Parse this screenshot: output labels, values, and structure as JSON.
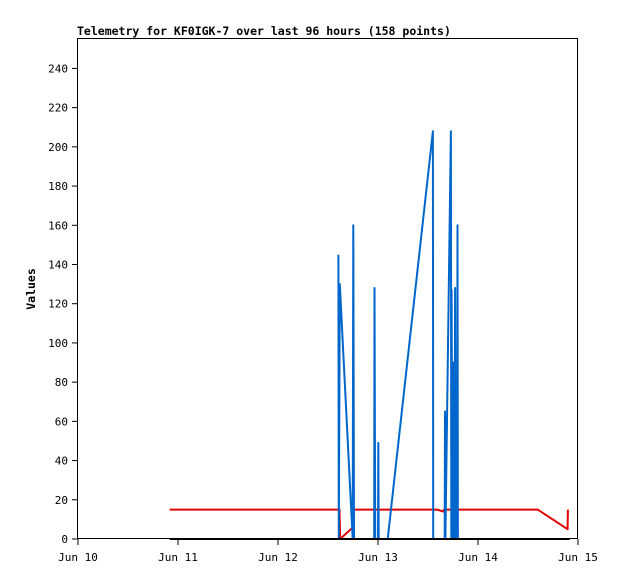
{
  "chart_data": {
    "type": "line",
    "title": "Telemetry for KF0IGK-7 over last 96 hours (158 points)",
    "xlabel": "",
    "ylabel": "Values",
    "xlim": [
      "Jun 10",
      "Jun 15"
    ],
    "ylim": [
      0,
      255
    ],
    "x_ticks": [
      "Jun 10",
      "Jun 11",
      "Jun 12",
      "Jun 13",
      "Jun 14",
      "Jun 15"
    ],
    "y_ticks": [
      0,
      20,
      40,
      60,
      80,
      100,
      120,
      140,
      160,
      180,
      200,
      220,
      240
    ],
    "grid": false,
    "legend": "none",
    "series": [
      {
        "color": "#e00000",
        "points": [
          [
            "Jun 10 22:00",
            15
          ],
          [
            "Jun 12 14:45",
            15
          ],
          [
            "Jun 12 14:55",
            0
          ],
          [
            "Jun 12 18:00",
            6
          ],
          [
            "Jun 12 18:10",
            15
          ],
          [
            "Jun 13 14:10",
            15
          ],
          [
            "Jun 13 15:40",
            14
          ],
          [
            "Jun 13 15:50",
            15
          ],
          [
            "Jun 13 18:00",
            15
          ],
          [
            "Jun 13 18:10",
            2
          ],
          [
            "Jun 13 18:20",
            15
          ],
          [
            "Jun 14 14:20",
            15
          ],
          [
            "Jun 14 21:30",
            5
          ],
          [
            "Jun 14 21:35",
            15
          ]
        ]
      },
      {
        "color": "#0066cc",
        "points": [
          [
            "Jun 12 14:30",
            145
          ],
          [
            "Jun 12 14:35",
            0
          ],
          [
            "Jun 12 14:50",
            130
          ],
          [
            "Jun 12 17:55",
            0
          ],
          [
            "Jun 12 18:05",
            160
          ],
          [
            "Jun 12 18:15",
            0
          ],
          [
            "Jun 12 23:05",
            0
          ],
          [
            "Jun 12 23:10",
            128
          ],
          [
            "Jun 12 23:20",
            0
          ],
          [
            "Jun 13 00:00",
            0
          ],
          [
            "Jun 13 00:05",
            49
          ],
          [
            "Jun 13 00:10",
            0
          ],
          [
            "Jun 13 02:20",
            0
          ],
          [
            "Jun 13 13:10",
            208
          ],
          [
            "Jun 13 13:15",
            0
          ],
          [
            "Jun 13 16:00",
            0
          ],
          [
            "Jun 13 16:05",
            65
          ],
          [
            "Jun 13 16:10",
            0
          ],
          [
            "Jun 13 17:30",
            208
          ],
          [
            "Jun 13 17:35",
            0
          ],
          [
            "Jun 13 17:40",
            127
          ],
          [
            "Jun 13 17:50",
            0
          ],
          [
            "Jun 13 18:00",
            90
          ],
          [
            "Jun 13 18:05",
            0
          ],
          [
            "Jun 13 18:10",
            80
          ],
          [
            "Jun 13 18:20",
            0
          ],
          [
            "Jun 13 18:30",
            128
          ],
          [
            "Jun 13 18:40",
            0
          ],
          [
            "Jun 13 19:00",
            0
          ],
          [
            "Jun 13 19:05",
            160
          ],
          [
            "Jun 13 19:10",
            0
          ]
        ]
      },
      {
        "color": "#000000",
        "points": [
          [
            "Jun 10 22:00",
            0
          ],
          [
            "Jun 14 22:00",
            0
          ]
        ]
      }
    ]
  }
}
